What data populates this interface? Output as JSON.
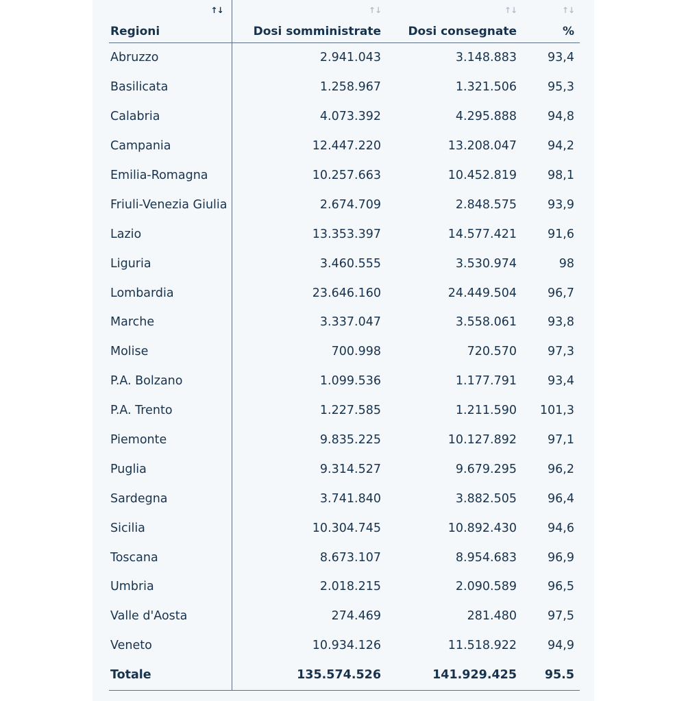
{
  "table": {
    "headers": {
      "region": "Regioni",
      "administered": "Dosi somministrate",
      "delivered": "Dosi consegnate",
      "percent": "%"
    },
    "sort_icon": "↑↓",
    "rows": [
      {
        "region": "Abruzzo",
        "administered": "2.941.043",
        "delivered": "3.148.883",
        "percent": "93,4"
      },
      {
        "region": "Basilicata",
        "administered": "1.258.967",
        "delivered": "1.321.506",
        "percent": "95,3"
      },
      {
        "region": "Calabria",
        "administered": "4.073.392",
        "delivered": "4.295.888",
        "percent": "94,8"
      },
      {
        "region": "Campania",
        "administered": "12.447.220",
        "delivered": "13.208.047",
        "percent": "94,2"
      },
      {
        "region": "Emilia-Romagna",
        "administered": "10.257.663",
        "delivered": "10.452.819",
        "percent": "98,1"
      },
      {
        "region": "Friuli-Venezia Giulia",
        "administered": "2.674.709",
        "delivered": "2.848.575",
        "percent": "93,9"
      },
      {
        "region": "Lazio",
        "administered": "13.353.397",
        "delivered": "14.577.421",
        "percent": "91,6"
      },
      {
        "region": "Liguria",
        "administered": "3.460.555",
        "delivered": "3.530.974",
        "percent": "98"
      },
      {
        "region": "Lombardia",
        "administered": "23.646.160",
        "delivered": "24.449.504",
        "percent": "96,7"
      },
      {
        "region": "Marche",
        "administered": "3.337.047",
        "delivered": "3.558.061",
        "percent": "93,8"
      },
      {
        "region": "Molise",
        "administered": "700.998",
        "delivered": "720.570",
        "percent": "97,3"
      },
      {
        "region": "P.A. Bolzano",
        "administered": "1.099.536",
        "delivered": "1.177.791",
        "percent": "93,4"
      },
      {
        "region": "P.A. Trento",
        "administered": "1.227.585",
        "delivered": "1.211.590",
        "percent": "101,3"
      },
      {
        "region": "Piemonte",
        "administered": "9.835.225",
        "delivered": "10.127.892",
        "percent": "97,1"
      },
      {
        "region": "Puglia",
        "administered": "9.314.527",
        "delivered": "9.679.295",
        "percent": "96,2"
      },
      {
        "region": "Sardegna",
        "administered": "3.741.840",
        "delivered": "3.882.505",
        "percent": "96,4"
      },
      {
        "region": "Sicilia",
        "administered": "10.304.745",
        "delivered": "10.892.430",
        "percent": "94,6"
      },
      {
        "region": "Toscana",
        "administered": "8.673.107",
        "delivered": "8.954.683",
        "percent": "96,9"
      },
      {
        "region": "Umbria",
        "administered": "2.018.215",
        "delivered": "2.090.589",
        "percent": "96,5"
      },
      {
        "region": "Valle d'Aosta",
        "administered": "274.469",
        "delivered": "281.480",
        "percent": "97,5"
      },
      {
        "region": "Veneto",
        "administered": "10.934.126",
        "delivered": "11.518.922",
        "percent": "94,9"
      }
    ],
    "total": {
      "region": "Totale",
      "administered": "135.574.526",
      "delivered": "141.929.425",
      "percent": "95.5"
    }
  }
}
